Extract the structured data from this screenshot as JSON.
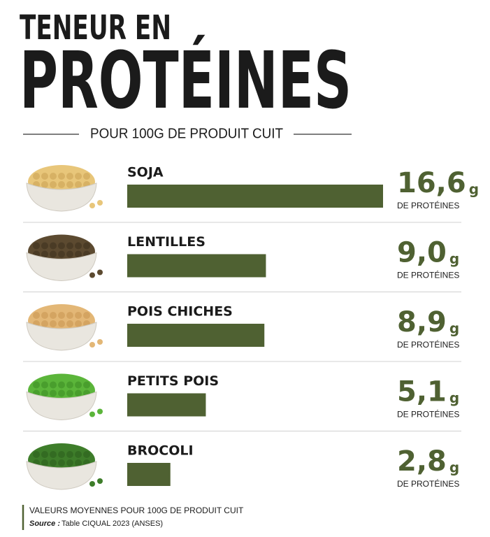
{
  "chart_data": {
    "type": "bar",
    "orientation": "horizontal",
    "title": "TENEUR EN",
    "title_emphasis": "PROTÉINES",
    "subtitle": "POUR 100G DE PRODUIT CUIT",
    "categories": [
      "SOJA",
      "LENTILLES",
      "POIS CHICHES",
      "PETITS POIS",
      "BROCOLI"
    ],
    "values": [
      16.6,
      9.0,
      8.9,
      5.1,
      2.8
    ],
    "value_labels": [
      "16,6",
      "9,0",
      "8,9",
      "5,1",
      "2,8"
    ],
    "unit": "g",
    "unit_caption": "DE PROTÉINES",
    "color": "#4f6132",
    "footnote": "VALEURS MOYENNES POUR 100G DE PRODUIT CUIT",
    "source_label": "Source :",
    "source": "Table CIQUAL 2023 (ANSES)"
  }
}
